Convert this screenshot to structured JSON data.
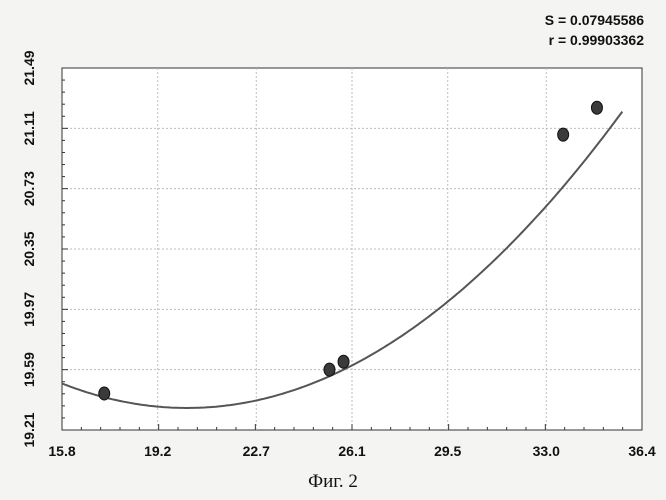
{
  "stats": {
    "s_line": "S = 0.07945586",
    "r_line": "r = 0.99903362"
  },
  "caption": "Фиг. 2",
  "chart_data": {
    "type": "scatter",
    "title": "",
    "xlabel": "",
    "ylabel": "",
    "xlim": [
      15.8,
      36.4
    ],
    "ylim": [
      19.21,
      21.49
    ],
    "x_ticks": [
      "15.8",
      "19.2",
      "22.7",
      "26.1",
      "29.5",
      "33.0",
      "36.4"
    ],
    "y_ticks": [
      "19.21",
      "19.59",
      "19.97",
      "20.35",
      "20.73",
      "21.11",
      "21.49"
    ],
    "grid": true,
    "series": [
      {
        "mode": "markers",
        "x": [
          17.3,
          25.3,
          25.8,
          33.6,
          34.8
        ],
        "y": [
          19.44,
          19.59,
          19.64,
          21.07,
          21.24
        ]
      },
      {
        "mode": "line",
        "fit": "quadratic",
        "coefficients": [
          0.007813,
          -0.3163,
          22.55
        ],
        "x_range": [
          15.8,
          35.7
        ]
      }
    ]
  }
}
